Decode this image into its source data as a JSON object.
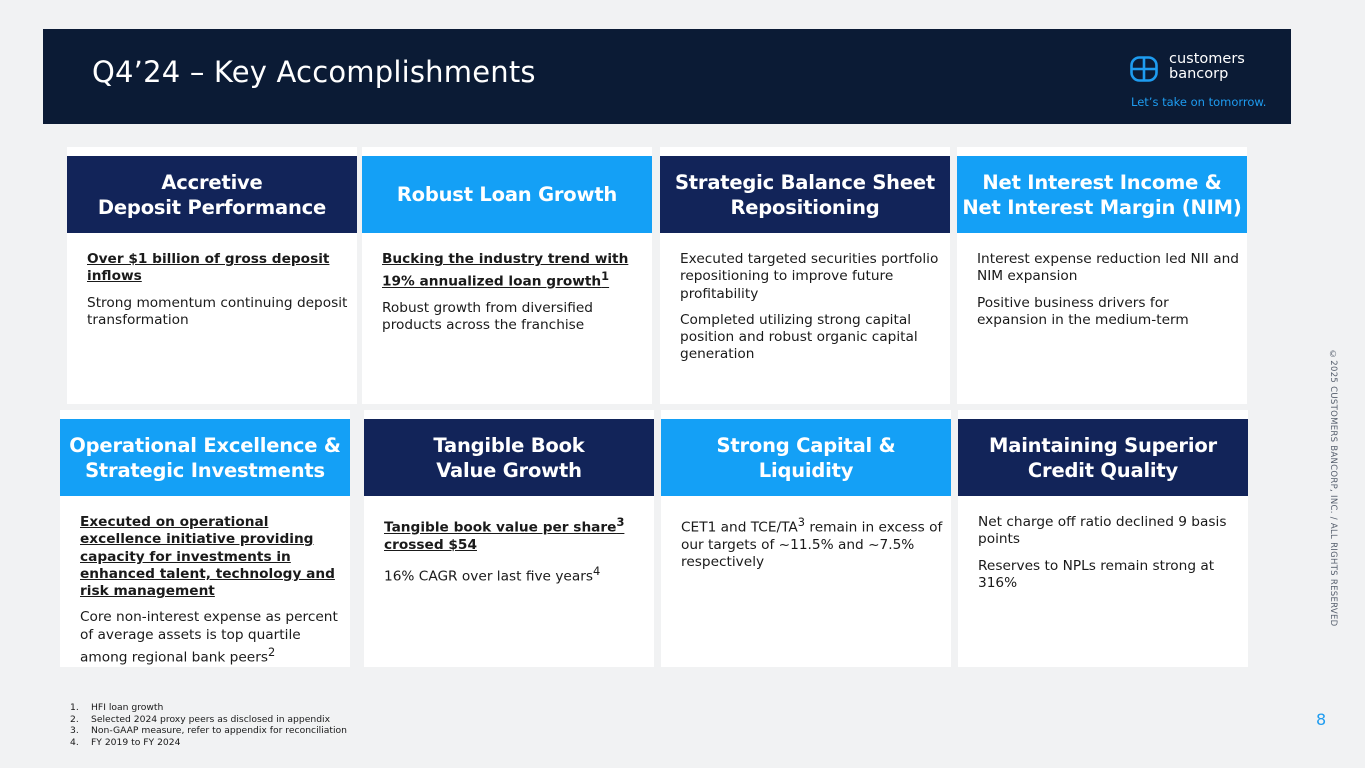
{
  "header": {
    "title": "Q4’24 – Key Accomplishments",
    "logo_line1": "customers",
    "logo_line2": "bancorp",
    "tagline": "Let’s take on tomorrow."
  },
  "cards": [
    {
      "title": "Accretive\nDeposit Performance",
      "color": "#122459",
      "items": [
        {
          "text": "Over $1 billion of gross deposit inflows",
          "emphasis": true
        },
        {
          "text": "Strong momentum continuing deposit transformation",
          "emphasis": false
        }
      ]
    },
    {
      "title": "Robust Loan Growth",
      "color": "#14a0f6",
      "items": [
        {
          "text": "Bucking the industry trend with 19% annualized loan growth",
          "sup": "1",
          "emphasis": true
        },
        {
          "text": "Robust growth from diversified products across the franchise",
          "emphasis": false
        }
      ]
    },
    {
      "title": "Strategic Balance Sheet\nRepositioning",
      "color": "#122459",
      "items": [
        {
          "text": "Executed targeted securities portfolio repositioning to improve future profitability",
          "emphasis": false
        },
        {
          "text": "Completed utilizing strong capital position and robust organic capital generation",
          "emphasis": false
        }
      ]
    },
    {
      "title": "Net Interest Income &\nNet Interest Margin (NIM)",
      "color": "#14a0f6",
      "items": [
        {
          "text": "Interest expense reduction led NII and NIM expansion",
          "emphasis": false
        },
        {
          "text": "Positive business drivers for expansion in the medium-term",
          "emphasis": false
        }
      ]
    },
    {
      "title": "Operational Excellence &\nStrategic Investments",
      "color": "#14a0f6",
      "items": [
        {
          "text": "Executed on operational excellence initiative providing capacity for investments in enhanced talent, technology and risk management",
          "emphasis": true
        },
        {
          "text": "Core non-interest expense as percent of average assets is top quartile among regional bank peers",
          "sup": "2",
          "emphasis": false
        }
      ]
    },
    {
      "title": "Tangible Book\nValue Growth",
      "color": "#122459",
      "items": [
        {
          "text": "Tangible book value per share",
          "sup": "3",
          "text2": " crossed $54",
          "emphasis": true
        },
        {
          "text": "16% CAGR over last five years",
          "sup": "4",
          "emphasis": false
        }
      ]
    },
    {
      "title": "Strong Capital &\nLiquidity",
      "color": "#14a0f6",
      "items": [
        {
          "text": "CET1 and TCE/TA",
          "sup": "3",
          "text2": " remain in excess of our targets of ~11.5% and ~7.5% respectively",
          "emphasis": false
        }
      ]
    },
    {
      "title": "Maintaining Superior\nCredit Quality",
      "color": "#122459",
      "items": [
        {
          "text": "Net charge off ratio declined 9 basis points",
          "emphasis": false
        },
        {
          "text": "Reserves to NPLs remain strong at 316%",
          "emphasis": false
        }
      ]
    }
  ],
  "footnotes": [
    {
      "num": "1.",
      "text": "HFI loan growth"
    },
    {
      "num": "2.",
      "text": "Selected 2024 proxy peers as disclosed in appendix"
    },
    {
      "num": "3.",
      "text": "Non-GAAP measure, refer to appendix for reconciliation"
    },
    {
      "num": "4.",
      "text": "FY 2019 to FY 2024"
    }
  ],
  "side_note": "©2025 CUSTOMERS BANCORP, INC. / ALL RIGHTS RESERVED",
  "page_number": "8"
}
